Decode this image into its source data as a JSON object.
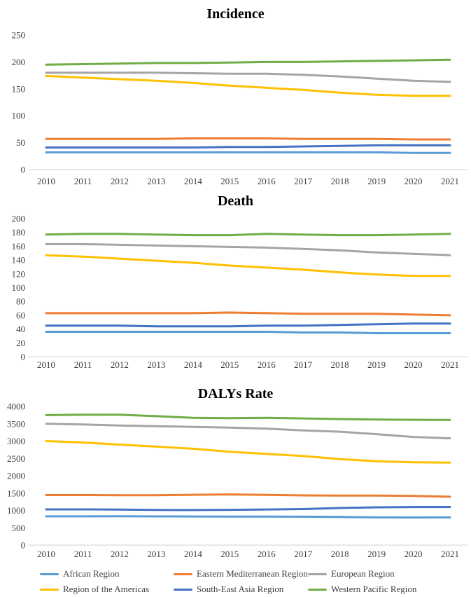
{
  "figure": {
    "background": "#ffffff",
    "text_color": "#404040",
    "axis_line_color": "#d9d9d9"
  },
  "legend": {
    "items": [
      {
        "label": "African Region",
        "color": "#5B9BD5"
      },
      {
        "label": "Eastern Mediterranean Region",
        "color": "#ED7D31"
      },
      {
        "label": "European Region",
        "color": "#A5A5A5"
      },
      {
        "label": "Region of the Americas",
        "color": "#FFC000"
      },
      {
        "label": "South-East Asia Region",
        "color": "#4472C4"
      },
      {
        "label": "Western Pacific Region",
        "color": "#70AD47"
      }
    ]
  },
  "chart_data": [
    {
      "type": "line",
      "title": "Incidence",
      "categories": [
        "2010",
        "2011",
        "2012",
        "2013",
        "2014",
        "2015",
        "2016",
        "2017",
        "2018",
        "2019",
        "2020",
        "2021"
      ],
      "ylim": [
        0,
        250
      ],
      "yticks": [
        250,
        200,
        150,
        100,
        50,
        0
      ],
      "grid": false,
      "legend_position": "bottom-shared",
      "series": [
        {
          "name": "African Region",
          "color": "#5B9BD5",
          "values": [
            32,
            32,
            32,
            32,
            32,
            32,
            32,
            32,
            32,
            32,
            31,
            31
          ]
        },
        {
          "name": "Eastern Mediterranean Region",
          "color": "#ED7D31",
          "values": [
            57,
            57,
            57,
            57,
            58,
            58,
            58,
            57,
            57,
            57,
            56,
            56
          ]
        },
        {
          "name": "European Region",
          "color": "#A5A5A5",
          "values": [
            180,
            180,
            180,
            180,
            179,
            178,
            178,
            176,
            173,
            169,
            165,
            163
          ]
        },
        {
          "name": "Region of the Americas",
          "color": "#FFC000",
          "values": [
            174,
            171,
            168,
            165,
            161,
            156,
            152,
            148,
            143,
            139,
            137,
            137
          ]
        },
        {
          "name": "South-East Asia Region",
          "color": "#4472C4",
          "values": [
            41,
            41,
            41,
            41,
            41,
            42,
            42,
            43,
            44,
            45,
            45,
            45
          ]
        },
        {
          "name": "Western Pacific Region",
          "color": "#70AD47",
          "values": [
            195,
            196,
            197,
            198,
            198,
            199,
            200,
            200,
            201,
            202,
            203,
            204
          ]
        }
      ]
    },
    {
      "type": "line",
      "title": "Death",
      "categories": [
        "2010",
        "2011",
        "2012",
        "2013",
        "2014",
        "2015",
        "2016",
        "2017",
        "2018",
        "2019",
        "2020",
        "2021"
      ],
      "ylim": [
        0,
        200
      ],
      "yticks": [
        200,
        180,
        160,
        140,
        120,
        100,
        80,
        60,
        40,
        20,
        0
      ],
      "grid": false,
      "legend_position": "bottom-shared",
      "series": [
        {
          "name": "African Region",
          "color": "#5B9BD5",
          "values": [
            36,
            36,
            36,
            36,
            36,
            36,
            36,
            35,
            35,
            34,
            34,
            34
          ]
        },
        {
          "name": "Eastern Mediterranean Region",
          "color": "#ED7D31",
          "values": [
            63,
            63,
            63,
            63,
            63,
            64,
            63,
            62,
            62,
            62,
            61,
            60
          ]
        },
        {
          "name": "European Region",
          "color": "#A5A5A5",
          "values": [
            163,
            163,
            162,
            161,
            160,
            159,
            158,
            156,
            154,
            151,
            149,
            147
          ]
        },
        {
          "name": "Region of the Americas",
          "color": "#FFC000",
          "values": [
            147,
            145,
            142,
            139,
            136,
            132,
            129,
            126,
            122,
            119,
            117,
            117
          ]
        },
        {
          "name": "South-East Asia Region",
          "color": "#4472C4",
          "values": [
            45,
            45,
            45,
            44,
            44,
            44,
            45,
            45,
            46,
            47,
            48,
            48
          ]
        },
        {
          "name": "Western Pacific Region",
          "color": "#70AD47",
          "values": [
            177,
            178,
            178,
            177,
            176,
            176,
            178,
            177,
            176,
            176,
            177,
            178
          ]
        }
      ]
    },
    {
      "type": "line",
      "title": "DALYs Rate",
      "categories": [
        "2010",
        "2011",
        "2012",
        "2013",
        "2014",
        "2015",
        "2016",
        "2017",
        "2018",
        "2019",
        "2020",
        "2021"
      ],
      "ylim": [
        0,
        4000
      ],
      "yticks": [
        4000,
        3500,
        3000,
        2500,
        2000,
        1500,
        1000,
        500,
        0
      ],
      "grid": false,
      "legend_position": "bottom-shared",
      "series": [
        {
          "name": "African Region",
          "color": "#5B9BD5",
          "values": [
            830,
            830,
            832,
            828,
            826,
            825,
            825,
            820,
            812,
            800,
            798,
            800
          ]
        },
        {
          "name": "Eastern Mediterranean Region",
          "color": "#ED7D31",
          "values": [
            1445,
            1445,
            1440,
            1438,
            1452,
            1462,
            1448,
            1435,
            1430,
            1428,
            1418,
            1395
          ]
        },
        {
          "name": "European Region",
          "color": "#A5A5A5",
          "values": [
            3500,
            3480,
            3450,
            3430,
            3410,
            3390,
            3360,
            3310,
            3270,
            3200,
            3120,
            3080
          ]
        },
        {
          "name": "Region of the Americas",
          "color": "#FFC000",
          "values": [
            3000,
            2960,
            2900,
            2840,
            2780,
            2690,
            2630,
            2570,
            2480,
            2420,
            2390,
            2380
          ]
        },
        {
          "name": "South-East Asia Region",
          "color": "#4472C4",
          "values": [
            1030,
            1030,
            1025,
            1015,
            1012,
            1018,
            1028,
            1040,
            1070,
            1090,
            1098,
            1100
          ]
        },
        {
          "name": "Western Pacific Region",
          "color": "#70AD47",
          "values": [
            3750,
            3760,
            3760,
            3720,
            3670,
            3660,
            3670,
            3655,
            3635,
            3620,
            3615,
            3610
          ]
        }
      ]
    }
  ]
}
